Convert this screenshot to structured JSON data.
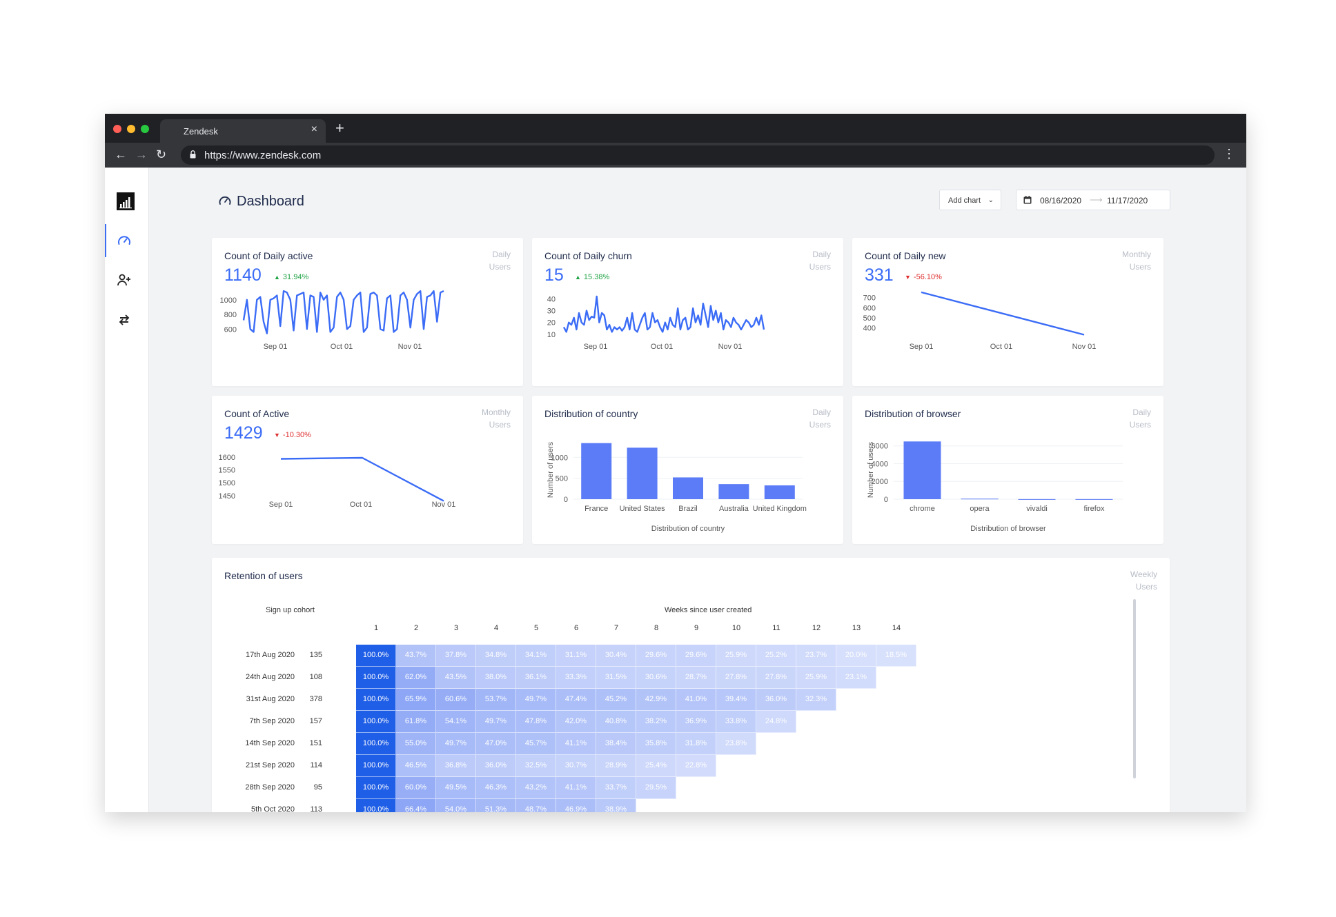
{
  "browser": {
    "tab_title": "Zendesk",
    "tab_close": "×",
    "new_tab": "+",
    "url": "https://www.zendesk.com",
    "back": "←",
    "forward": "→",
    "reload": "↻",
    "menu": "⋮"
  },
  "header": {
    "title": "Dashboard",
    "add_chart": "Add chart",
    "add_chart_caret": "⌄",
    "date_from": "08/16/2020",
    "date_arrow": "⟶",
    "date_to": "11/17/2020"
  },
  "sidebar": {
    "items": [
      {
        "icon": "bar-chart-logo-icon"
      },
      {
        "icon": "gauge-icon",
        "active": true
      },
      {
        "icon": "add-user-icon"
      },
      {
        "icon": "swap-arrows-icon"
      }
    ]
  },
  "colors": {
    "accent": "#3b6cf6",
    "bar": "#5b7cf6",
    "up": "#22a447",
    "down": "#e03131"
  },
  "cards": {
    "daily_active": {
      "title": "Count of Daily active",
      "period1": "Daily",
      "period2": "Users",
      "value": "1140",
      "change": "31.94%",
      "dir": "up",
      "tri": "▲"
    },
    "daily_churn": {
      "title": "Count of Daily churn",
      "period1": "Daily",
      "period2": "Users",
      "value": "15",
      "change": "15.38%",
      "dir": "up",
      "tri": "▲"
    },
    "daily_new": {
      "title": "Count of Daily new",
      "period1": "Monthly",
      "period2": "Users",
      "value": "331",
      "change": "-56.10%",
      "dir": "down",
      "tri": "▼"
    },
    "active": {
      "title": "Count of Active",
      "period1": "Monthly",
      "period2": "Users",
      "value": "1429",
      "change": "-10.30%",
      "dir": "down",
      "tri": "▼"
    },
    "country": {
      "title": "Distribution of country",
      "period1": "Daily",
      "period2": "Users"
    },
    "browser": {
      "title": "Distribution of browser",
      "period1": "Daily",
      "period2": "Users"
    }
  },
  "chart_data": [
    {
      "type": "line",
      "id": "daily_active",
      "x_ticks": [
        "Sep 01",
        "Oct 01",
        "Nov 01"
      ],
      "y_ticks": [
        1000,
        800,
        600
      ],
      "ylim": [
        480,
        1140
      ],
      "values": [
        720,
        1000,
        600,
        560,
        1000,
        1040,
        700,
        540,
        1000,
        1020,
        1060,
        640,
        1120,
        1100,
        1000,
        580,
        1060,
        1080,
        1100,
        600,
        1060,
        1040,
        560,
        1100,
        1000,
        1060,
        560,
        620,
        1040,
        1100,
        1000,
        600,
        640,
        1000,
        1060,
        1100,
        560,
        620,
        1080,
        1100,
        1060,
        600,
        580,
        1020,
        1060,
        560,
        600,
        1060,
        1100,
        1000,
        620,
        1000,
        1080,
        1120,
        600,
        1040,
        1060,
        1120,
        700,
        1100,
        1120
      ]
    },
    {
      "type": "line",
      "id": "daily_churn",
      "x_ticks": [
        "Sep 01",
        "Oct 01",
        "Nov 01"
      ],
      "y_ticks": [
        40,
        30,
        20,
        10
      ],
      "ylim": [
        7,
        46
      ],
      "values": [
        16,
        12,
        20,
        18,
        24,
        14,
        28,
        20,
        18,
        30,
        22,
        25,
        24,
        42,
        20,
        28,
        26,
        14,
        18,
        12,
        16,
        14,
        16,
        13,
        16,
        24,
        14,
        28,
        14,
        12,
        18,
        24,
        28,
        14,
        16,
        28,
        20,
        22,
        16,
        12,
        20,
        14,
        24,
        18,
        16,
        32,
        14,
        22,
        24,
        14,
        16,
        32,
        20,
        26,
        18,
        36,
        26,
        16,
        34,
        22,
        30,
        20,
        28,
        14,
        22,
        20,
        16,
        24,
        20,
        18,
        14,
        18,
        22,
        20,
        16,
        18,
        24,
        18,
        26,
        14
      ]
    },
    {
      "type": "line",
      "id": "daily_new",
      "x_ticks": [
        "Sep 01",
        "Oct 01",
        "Nov 01"
      ],
      "y_ticks": [
        700,
        600,
        500,
        400
      ],
      "ylim": [
        300,
        760
      ],
      "values": [
        754,
        331
      ]
    },
    {
      "type": "line",
      "id": "active",
      "x_ticks": [
        "Sep 01",
        "Oct 01",
        "Nov 01"
      ],
      "y_ticks": [
        1600,
        1550,
        1500,
        1450
      ],
      "ylim": [
        1420,
        1640
      ],
      "values": [
        1593,
        1597,
        1429
      ]
    },
    {
      "type": "bar",
      "id": "country",
      "categories": [
        "France",
        "United States",
        "Brazil",
        "Australia",
        "United Kingdom"
      ],
      "values": [
        1340,
        1230,
        520,
        360,
        330
      ],
      "y_ticks": [
        1000,
        500,
        0
      ],
      "ylim": [
        0,
        1400
      ],
      "xlabel": "Distribution of country",
      "ylabel": "Number of users"
    },
    {
      "type": "bar",
      "id": "browser",
      "categories": [
        "chrome",
        "opera",
        "vivaldi",
        "firefox"
      ],
      "values": [
        6500,
        60,
        10,
        10
      ],
      "y_ticks": [
        6000,
        4000,
        2000,
        0
      ],
      "ylim": [
        0,
        6600
      ],
      "xlabel": "Distribution of browser",
      "ylabel": "Number of users"
    }
  ],
  "retention": {
    "title": "Retention of users",
    "period1": "Weekly",
    "period2": "Users",
    "cohort_label": "Sign up cohort",
    "weeks_label": "Weeks since user created",
    "weeks": [
      "1",
      "2",
      "3",
      "4",
      "5",
      "6",
      "7",
      "8",
      "9",
      "10",
      "11",
      "12",
      "13",
      "14"
    ],
    "rows": [
      {
        "date": "17th Aug 2020",
        "n": "135",
        "cells": [
          "100.0%",
          "43.7%",
          "37.8%",
          "34.8%",
          "34.1%",
          "31.1%",
          "30.4%",
          "29.6%",
          "29.6%",
          "25.9%",
          "25.2%",
          "23.7%",
          "20.0%",
          "18.5%"
        ]
      },
      {
        "date": "24th Aug 2020",
        "n": "108",
        "cells": [
          "100.0%",
          "62.0%",
          "43.5%",
          "38.0%",
          "36.1%",
          "33.3%",
          "31.5%",
          "30.6%",
          "28.7%",
          "27.8%",
          "27.8%",
          "25.9%",
          "23.1%"
        ]
      },
      {
        "date": "31st Aug 2020",
        "n": "378",
        "cells": [
          "100.0%",
          "65.9%",
          "60.6%",
          "53.7%",
          "49.7%",
          "47.4%",
          "45.2%",
          "42.9%",
          "41.0%",
          "39.4%",
          "36.0%",
          "32.3%"
        ]
      },
      {
        "date": "7th Sep 2020",
        "n": "157",
        "cells": [
          "100.0%",
          "61.8%",
          "54.1%",
          "49.7%",
          "47.8%",
          "42.0%",
          "40.8%",
          "38.2%",
          "36.9%",
          "33.8%",
          "24.8%"
        ]
      },
      {
        "date": "14th Sep 2020",
        "n": "151",
        "cells": [
          "100.0%",
          "55.0%",
          "49.7%",
          "47.0%",
          "45.7%",
          "41.1%",
          "38.4%",
          "35.8%",
          "31.8%",
          "23.8%"
        ]
      },
      {
        "date": "21st Sep 2020",
        "n": "114",
        "cells": [
          "100.0%",
          "46.5%",
          "36.8%",
          "36.0%",
          "32.5%",
          "30.7%",
          "28.9%",
          "25.4%",
          "22.8%"
        ]
      },
      {
        "date": "28th Sep 2020",
        "n": "95",
        "cells": [
          "100.0%",
          "60.0%",
          "49.5%",
          "46.3%",
          "43.2%",
          "41.1%",
          "33.7%",
          "29.5%"
        ]
      },
      {
        "date": "5th Oct 2020",
        "n": "113",
        "cells": [
          "100.0%",
          "66.4%",
          "54.0%",
          "51.3%",
          "48.7%",
          "46.9%",
          "38.9%"
        ]
      }
    ]
  }
}
